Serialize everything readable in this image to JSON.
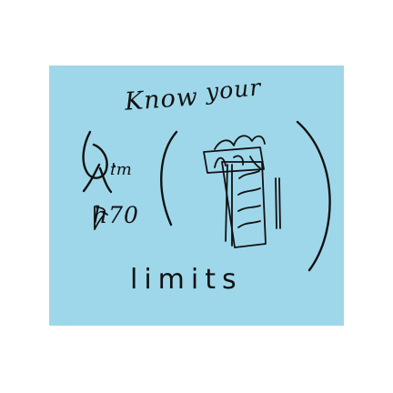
{
  "note": {
    "title_line_1": "Know",
    "title_line_2": "your",
    "middle_label_1": "im",
    "middle_label_2": "h70",
    "bottom_label": "limits"
  },
  "colors": {
    "note_background": "#9fd7ea",
    "ink": "#111111"
  }
}
